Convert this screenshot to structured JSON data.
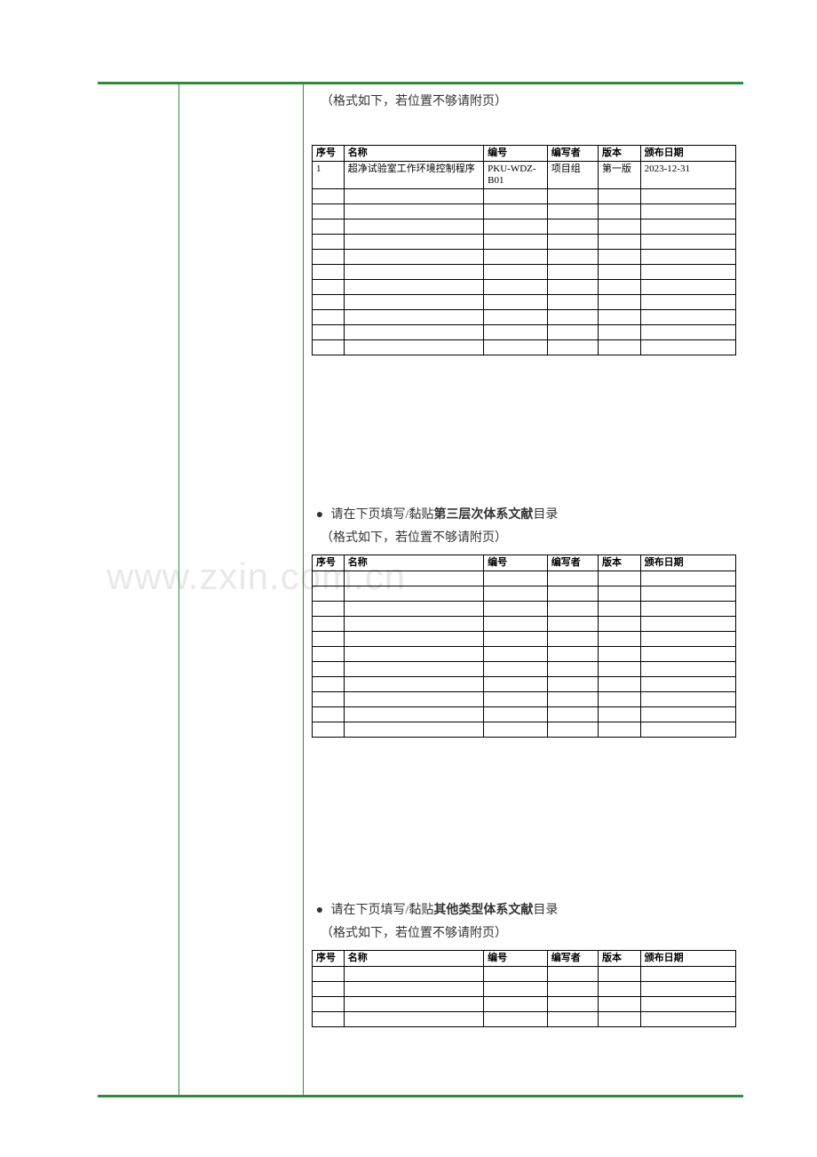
{
  "section1": {
    "note": "（格式如下，若位置不够请附页）",
    "headers": [
      "序号",
      "名称",
      "编号",
      "编写者",
      "版本",
      "颁布日期"
    ],
    "rows": [
      [
        "1",
        "超净试验室工作环境控制程序",
        "PKU-WDZ-B01",
        "项目组",
        "第一版",
        "2023-12-31"
      ],
      [
        "",
        "",
        "",
        "",
        "",
        ""
      ],
      [
        "",
        "",
        "",
        "",
        "",
        ""
      ],
      [
        "",
        "",
        "",
        "",
        "",
        ""
      ],
      [
        "",
        "",
        "",
        "",
        "",
        ""
      ],
      [
        "",
        "",
        "",
        "",
        "",
        ""
      ],
      [
        "",
        "",
        "",
        "",
        "",
        ""
      ],
      [
        "",
        "",
        "",
        "",
        "",
        ""
      ],
      [
        "",
        "",
        "",
        "",
        "",
        ""
      ],
      [
        "",
        "",
        "",
        "",
        "",
        ""
      ],
      [
        "",
        "",
        "",
        "",
        "",
        ""
      ],
      [
        "",
        "",
        "",
        "",
        "",
        ""
      ]
    ]
  },
  "section2": {
    "bullet_prefix": "请在下页填写/黏贴",
    "bullet_bold": "第三层次体系文献",
    "bullet_suffix": "目录",
    "note": "（格式如下，若位置不够请附页）",
    "headers": [
      "序号",
      "名称",
      "编号",
      "编写者",
      "版本",
      "颁布日期"
    ],
    "rows": [
      [
        "",
        "",
        "",
        "",
        "",
        ""
      ],
      [
        "",
        "",
        "",
        "",
        "",
        ""
      ],
      [
        "",
        "",
        "",
        "",
        "",
        ""
      ],
      [
        "",
        "",
        "",
        "",
        "",
        ""
      ],
      [
        "",
        "",
        "",
        "",
        "",
        ""
      ],
      [
        "",
        "",
        "",
        "",
        "",
        ""
      ],
      [
        "",
        "",
        "",
        "",
        "",
        ""
      ],
      [
        "",
        "",
        "",
        "",
        "",
        ""
      ],
      [
        "",
        "",
        "",
        "",
        "",
        ""
      ],
      [
        "",
        "",
        "",
        "",
        "",
        ""
      ],
      [
        "",
        "",
        "",
        "",
        "",
        ""
      ]
    ]
  },
  "section3": {
    "bullet_prefix": "请在下页填写/黏贴",
    "bullet_bold": "其他类型体系文献",
    "bullet_suffix": "目录",
    "note": "（格式如下，若位置不够请附页）",
    "headers": [
      "序号",
      "名称",
      "编号",
      "编写者",
      "版本",
      "颁布日期"
    ],
    "rows": [
      [
        "",
        "",
        "",
        "",
        "",
        ""
      ],
      [
        "",
        "",
        "",
        "",
        "",
        ""
      ],
      [
        "",
        "",
        "",
        "",
        "",
        ""
      ],
      [
        "",
        "",
        "",
        "",
        "",
        ""
      ]
    ]
  },
  "watermark": "www.zxin.com.cn",
  "colors": {
    "border_green": "#2f8a3f",
    "table_border": "#000000",
    "text": "#333333",
    "watermark": "#e8e8e8",
    "background": "#ffffff"
  }
}
